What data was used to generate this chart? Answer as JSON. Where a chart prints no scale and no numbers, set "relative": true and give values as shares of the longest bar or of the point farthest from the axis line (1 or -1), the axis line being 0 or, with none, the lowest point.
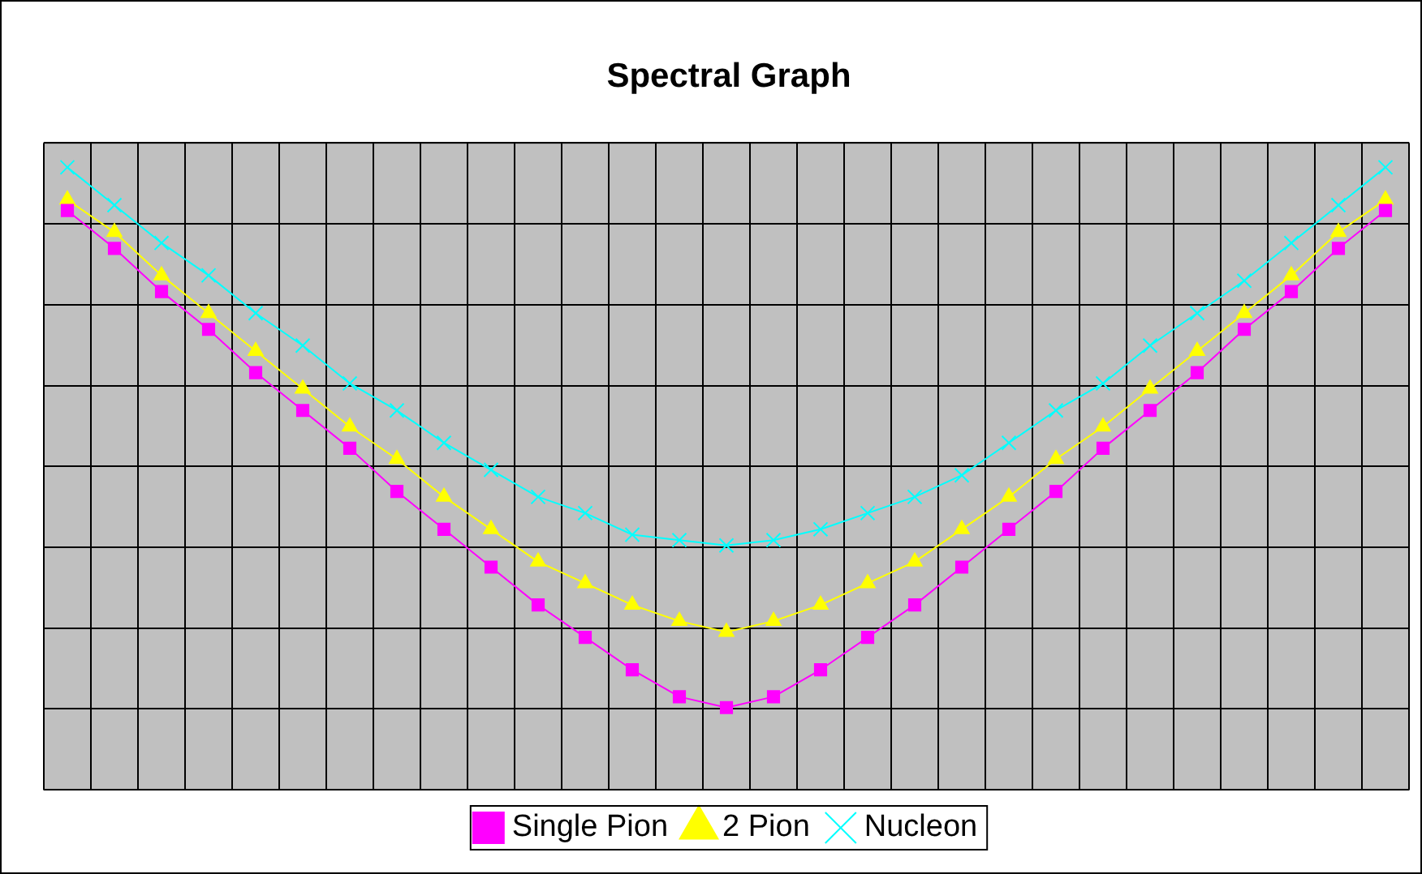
{
  "chart_data": {
    "type": "line",
    "title": "Spectral Graph",
    "relative": true,
    "grid": true,
    "legend": "bottom",
    "categories": [
      null,
      null,
      null,
      null,
      null,
      null,
      null,
      null,
      null,
      null,
      null,
      null,
      null,
      null,
      null,
      null,
      null,
      null,
      null,
      null,
      null,
      null,
      null,
      null,
      null,
      null,
      null,
      null,
      null
    ],
    "series": [
      {
        "name": "Single Pion",
        "color": "#ff00ff",
        "marker": "square",
        "values": [
          0.92,
          0.85,
          0.77,
          0.7,
          0.62,
          0.55,
          0.48,
          0.4,
          0.33,
          0.26,
          0.19,
          0.13,
          0.07,
          0.02,
          0,
          0.02,
          0.07,
          0.13,
          0.19,
          0.26,
          0.33,
          0.4,
          0.48,
          0.55,
          0.62,
          0.7,
          0.77,
          0.85,
          0.92
        ]
      },
      {
        "name": "2 Pion",
        "color": "#ffff00",
        "marker": "triangle",
        "values": [
          0.94,
          0.88,
          0.8,
          0.73,
          0.66,
          0.59,
          0.52,
          0.46,
          0.39,
          0.33,
          0.27,
          0.23,
          0.19,
          0.16,
          0.14,
          0.16,
          0.19,
          0.23,
          0.27,
          0.33,
          0.39,
          0.46,
          0.52,
          0.59,
          0.66,
          0.73,
          0.8,
          0.88,
          0.94
        ]
      },
      {
        "name": "Nucleon",
        "color": "#00ffff",
        "marker": "cross",
        "values": [
          1,
          0.93,
          0.86,
          0.8,
          0.73,
          0.67,
          0.6,
          0.55,
          0.49,
          0.44,
          0.39,
          0.36,
          0.32,
          0.31,
          0.3,
          0.31,
          0.33,
          0.36,
          0.39,
          0.43,
          0.49,
          0.55,
          0.6,
          0.67,
          0.73,
          0.79,
          0.86,
          0.93,
          1
        ]
      }
    ]
  }
}
